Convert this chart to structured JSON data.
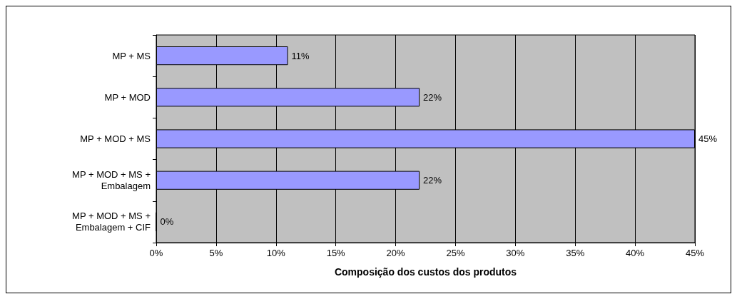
{
  "chart_data": {
    "type": "bar",
    "orientation": "horizontal",
    "xlabel": "Composição dos custos dos produtos",
    "categories": [
      "MP + MS",
      "MP + MOD",
      "MP + MOD + MS",
      "MP + MOD + MS +\nEmbalagem",
      "MP + MOD + MS +\nEmbalagem + CIF"
    ],
    "values": [
      11,
      22,
      45,
      22,
      0
    ],
    "value_labels": [
      "11%",
      "22%",
      "45%",
      "22%",
      "0%"
    ],
    "color": "#9999ff",
    "xlim": [
      0,
      45
    ],
    "xticks": [
      {
        "value": 0,
        "label": "0%"
      },
      {
        "value": 5,
        "label": "5%"
      },
      {
        "value": 10,
        "label": "10%"
      },
      {
        "value": 15,
        "label": "15%"
      },
      {
        "value": 20,
        "label": "20%"
      },
      {
        "value": 25,
        "label": "25%"
      },
      {
        "value": 30,
        "label": "30%"
      },
      {
        "value": 35,
        "label": "35%"
      },
      {
        "value": 40,
        "label": "40%"
      },
      {
        "value": 45,
        "label": "45%"
      }
    ],
    "grid": "x"
  }
}
